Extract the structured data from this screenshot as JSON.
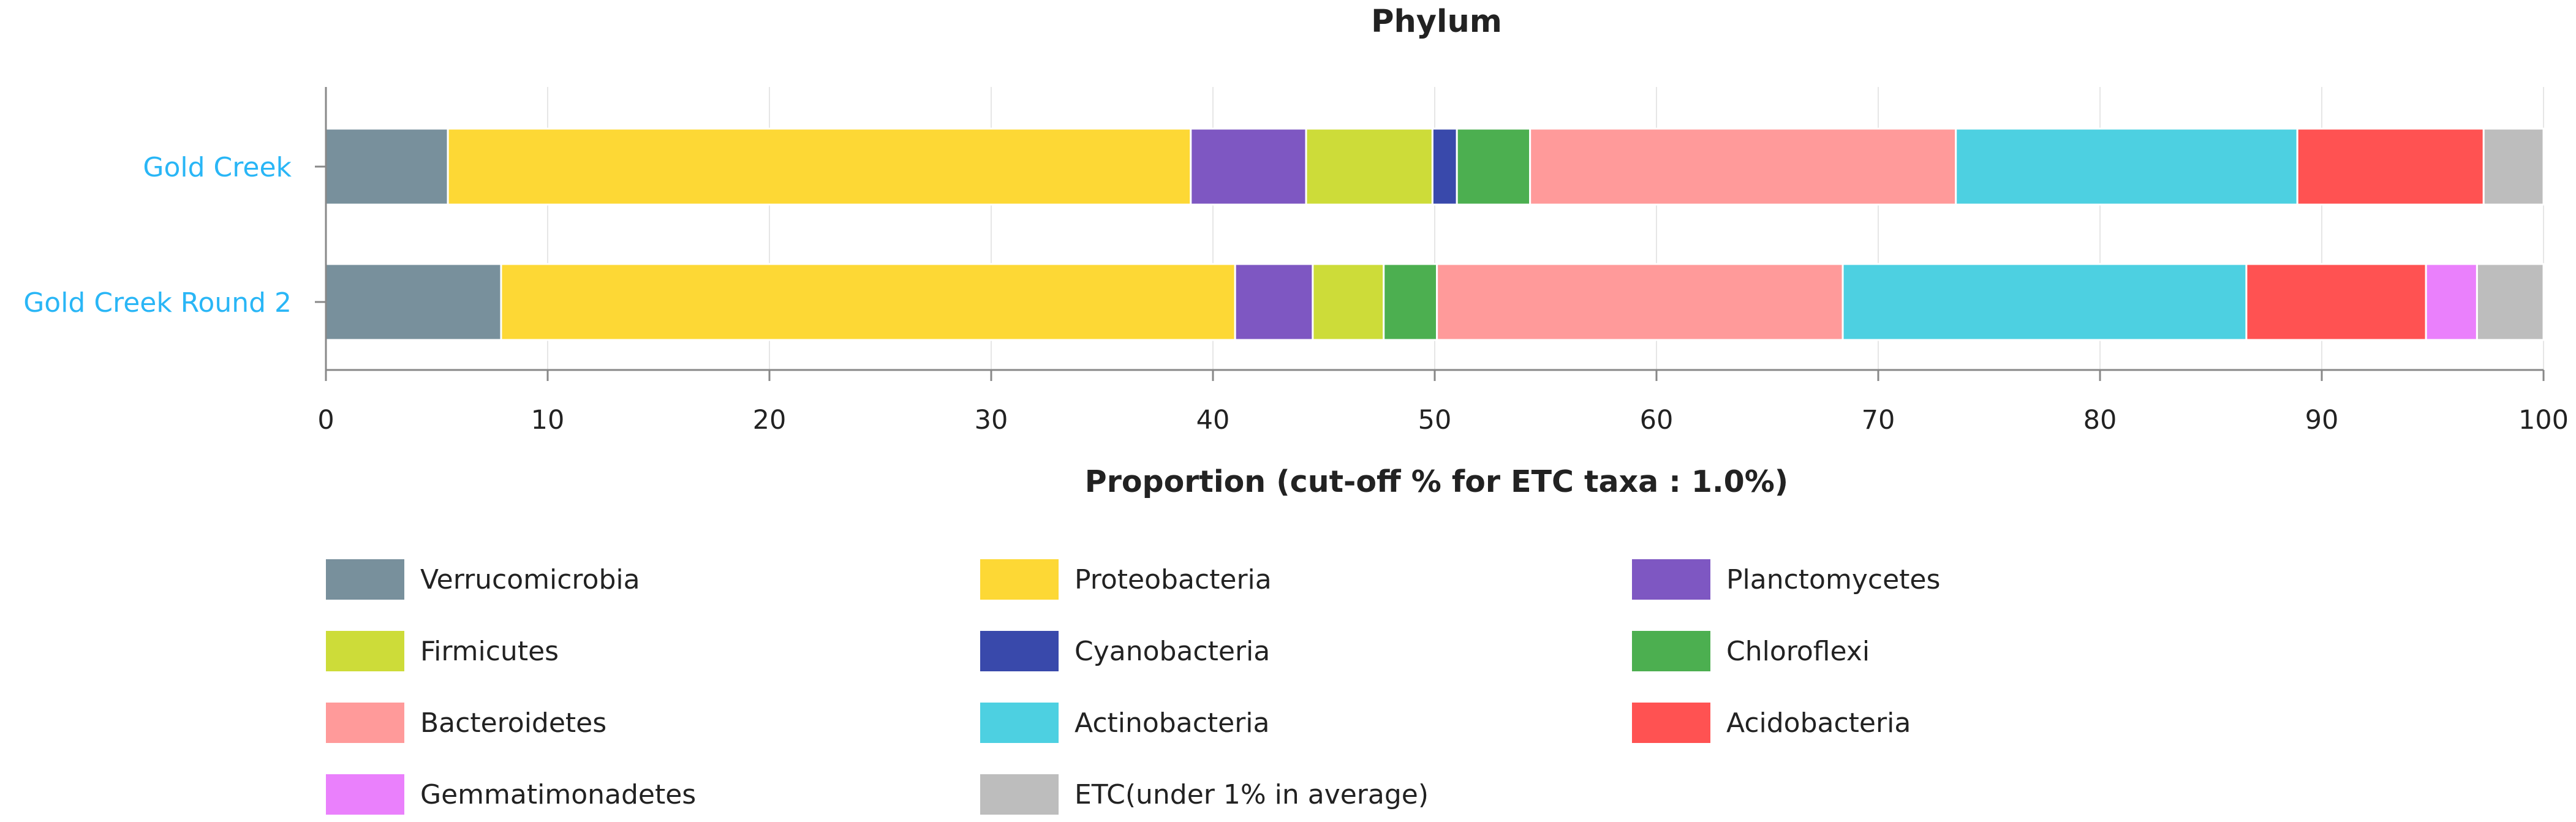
{
  "chart_data": {
    "type": "bar",
    "orientation": "horizontal",
    "stacked": true,
    "title": "Phylum",
    "xlabel": "Proportion (cut-off % for ETC taxa : 1.0%)",
    "ylabel": "",
    "xlim": [
      0,
      100
    ],
    "x_ticks": [
      0,
      10,
      20,
      30,
      40,
      50,
      60,
      70,
      80,
      90,
      100
    ],
    "grid": true,
    "legend_position": "bottom",
    "categories": [
      "Gold Creek",
      "Gold Creek Round 2"
    ],
    "series": [
      {
        "name": "Verrucomicrobia",
        "color": "#78909c",
        "values": [
          5.5,
          7.9
        ]
      },
      {
        "name": "Proteobacteria",
        "color": "#fdd835",
        "values": [
          33.5,
          33.1
        ]
      },
      {
        "name": "Planctomycetes",
        "color": "#7e57c2",
        "values": [
          5.2,
          3.5
        ]
      },
      {
        "name": "Firmicutes",
        "color": "#cddc39",
        "values": [
          5.7,
          3.2
        ]
      },
      {
        "name": "Cyanobacteria",
        "color": "#3949ab",
        "values": [
          1.1,
          0.0
        ]
      },
      {
        "name": "Chloroflexi",
        "color": "#4caf50",
        "values": [
          3.3,
          2.4
        ]
      },
      {
        "name": "Bacteroidetes",
        "color": "#ff9a9a",
        "values": [
          19.2,
          18.3
        ]
      },
      {
        "name": "Actinobacteria",
        "color": "#4dd0e1",
        "values": [
          15.4,
          18.2
        ]
      },
      {
        "name": "Acidobacteria",
        "color": "#ff5252",
        "values": [
          8.4,
          8.1
        ]
      },
      {
        "name": "Gemmatimonadetes",
        "color": "#ea80fc",
        "values": [
          0.0,
          2.3
        ]
      },
      {
        "name": "ETC(under 1% in average)",
        "color": "#bdbdbd",
        "values": [
          2.7,
          3.0
        ]
      }
    ]
  },
  "colors": {
    "axis": "#888888",
    "grid": "#e6e6e6",
    "category_label": "#29b6f6",
    "text": "#222222"
  }
}
